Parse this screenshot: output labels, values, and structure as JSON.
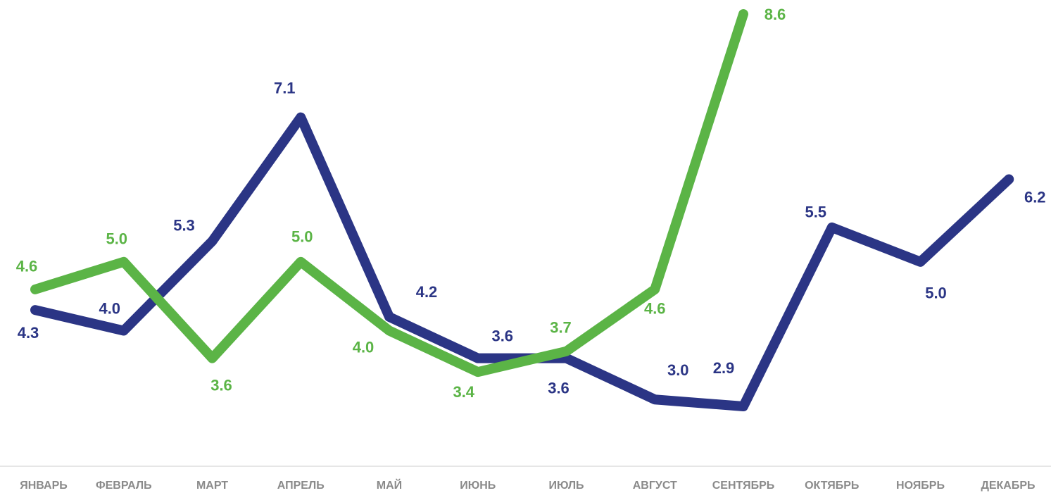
{
  "chart_data": {
    "type": "line",
    "categories": [
      "ЯНВАРЬ",
      "ФЕВРАЛЬ",
      "МАРТ",
      "АПРЕЛЬ",
      "МАЙ",
      "ИЮНЬ",
      "ИЮЛЬ",
      "АВГУСТ",
      "СЕНТЯБРЬ",
      "ОКТЯБРЬ",
      "НОЯБРЬ",
      "ДЕКАБРЬ"
    ],
    "series": [
      {
        "color": "#2b3585",
        "values": [
          4.3,
          4.0,
          5.3,
          7.1,
          4.2,
          3.6,
          3.6,
          3.0,
          2.9,
          5.5,
          5.0,
          6.2
        ],
        "value_labels": [
          "4.3",
          "4.0",
          "5.3",
          "7.1",
          "4.2",
          "3.6",
          "3.6",
          "3.0",
          "2.9",
          "5.5",
          "5.0",
          "6.2"
        ]
      },
      {
        "color": "#5bb446",
        "values": [
          4.6,
          5.0,
          3.6,
          5.0,
          4.0,
          3.4,
          3.7,
          4.6,
          8.6,
          null,
          null,
          null
        ],
        "value_labels": [
          "4.6",
          "5.0",
          "3.6",
          "5.0",
          "4.0",
          "3.4",
          "3.7",
          "4.6",
          "8.6",
          null,
          null,
          null
        ]
      }
    ]
  }
}
